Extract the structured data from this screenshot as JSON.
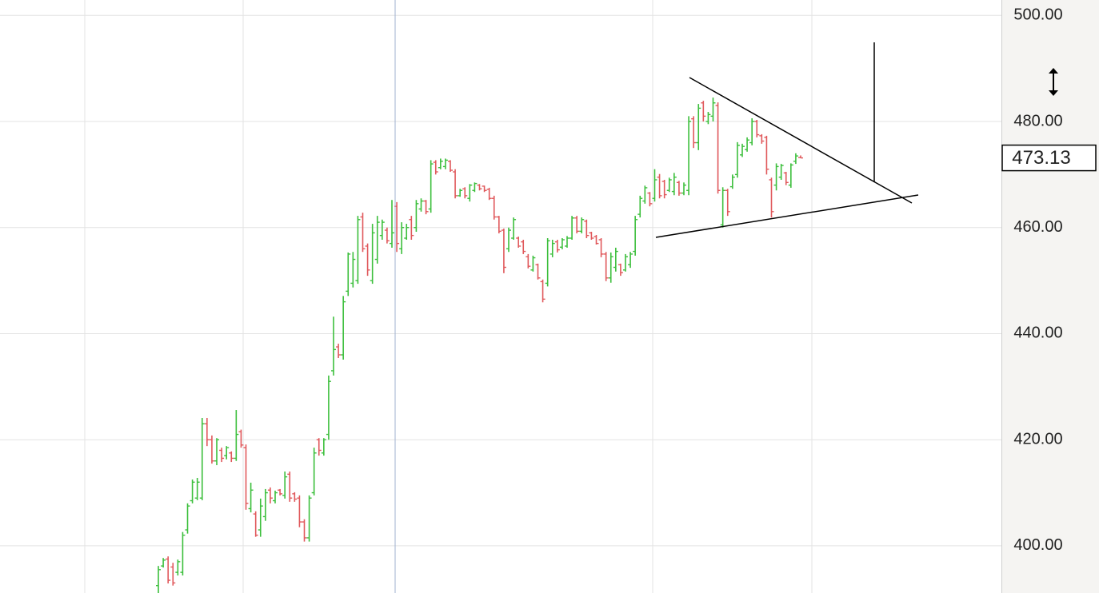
{
  "chart_data": {
    "type": "ohlc",
    "up_color": "#3cbf3c",
    "down_color": "#e0585b",
    "open": [
      392.5,
      396.2,
      397.5,
      396,
      395,
      395,
      403,
      408.5,
      409,
      409,
      423,
      420,
      416,
      418,
      417,
      417.5,
      416.5,
      421.5,
      418.5,
      407,
      406,
      403,
      405.5,
      410.5,
      408.5,
      410.5,
      409.5,
      413.5,
      409.8,
      409,
      404.5,
      401.5,
      410,
      420,
      417.5,
      421,
      433,
      437.5,
      436,
      448,
      449.5,
      450,
      462,
      456.5,
      450,
      454,
      458.5,
      459.5,
      457,
      464,
      456,
      458,
      461.5,
      460,
      463.5,
      465,
      463.5,
      472.3,
      471.3,
      471.5,
      472.5,
      470.5,
      466,
      467.3,
      465.5,
      467,
      468,
      467.8,
      467.2,
      465.5,
      462,
      459.5,
      456,
      458,
      458,
      457.3,
      454.5,
      452,
      453,
      449.8,
      449.5,
      455,
      457.3,
      456.3,
      456.5,
      458,
      461.8,
      459.3,
      461.2,
      459,
      458.3,
      457.7,
      455,
      450.5,
      452.5,
      453,
      452,
      453,
      455.5,
      462.5,
      465,
      466.5,
      465.5,
      469.5,
      468.7,
      467,
      466.8,
      468.5,
      466.5,
      467,
      480.5,
      476,
      483.5,
      480,
      481,
      483,
      460.5,
      467,
      467.7,
      470,
      473.7,
      474.7,
      476,
      480,
      477.3,
      477,
      469,
      468,
      469.5,
      470.3,
      468,
      472.5,
      473.2
    ],
    "high": [
      396.2,
      397.7,
      398,
      396.8,
      397.4,
      402.6,
      408,
      412.5,
      412.8,
      424.1,
      424.1,
      420.8,
      420.3,
      418.5,
      418.8,
      417.8,
      425.6,
      421.9,
      419.1,
      411.9,
      406.5,
      408.9,
      410.7,
      411,
      410.4,
      410.7,
      414,
      414,
      410.1,
      409.5,
      405,
      409.5,
      418.5,
      420.3,
      420.3,
      432.1,
      443.2,
      438.1,
      447.1,
      455.3,
      455.4,
      462.2,
      462.8,
      457,
      460.7,
      462.2,
      461.5,
      460,
      465.2,
      464.8,
      461,
      460.7,
      462.2,
      465.2,
      465.5,
      465.2,
      472.7,
      472.7,
      473,
      473,
      472.7,
      471,
      467.3,
      467.6,
      468.2,
      468.5,
      468.2,
      467.9,
      467.5,
      466,
      462.2,
      459.8,
      460,
      461.9,
      458.3,
      457.7,
      455,
      454.7,
      453.2,
      450.2,
      458,
      457.7,
      457.7,
      458,
      458.4,
      462.2,
      462.2,
      461.9,
      461.5,
      459.2,
      458.6,
      458,
      455.4,
      455.3,
      456.2,
      453.2,
      455,
      455.4,
      462.2,
      466,
      467.9,
      466.7,
      471,
      470.1,
      469,
      469.4,
      470.3,
      468.8,
      468.5,
      481,
      481,
      483.3,
      483.9,
      481.8,
      484.5,
      483.6,
      467.6,
      467.3,
      470,
      476.1,
      475.8,
      477,
      480.6,
      480.3,
      477.6,
      477.3,
      469.4,
      472.1,
      472,
      470.5,
      472.1,
      474,
      473.6
    ],
    "low": [
      391.1,
      395.9,
      392.9,
      392.5,
      394.4,
      394.4,
      402.3,
      408,
      408.6,
      408.6,
      418.8,
      415.5,
      415.2,
      415.8,
      416.3,
      415.8,
      416,
      418.5,
      406.8,
      406.3,
      401.7,
      401.7,
      404.7,
      408,
      408,
      409.5,
      408.9,
      408.3,
      408.3,
      403.5,
      400.8,
      400.8,
      409.5,
      417,
      417,
      420,
      432.1,
      435.4,
      435.1,
      447.1,
      448.7,
      449.4,
      455.4,
      450.9,
      449.4,
      453.2,
      457.7,
      457,
      456.2,
      455.4,
      455,
      457.7,
      457.7,
      459.2,
      463,
      462.5,
      462.8,
      470,
      471,
      471,
      470.5,
      465.5,
      465.8,
      465.5,
      464.9,
      466.7,
      467,
      466.7,
      465.2,
      461.5,
      458.9,
      451.4,
      455.4,
      457.7,
      456.2,
      455,
      452.3,
      451.7,
      450.2,
      445.9,
      448.9,
      454.4,
      455.3,
      455.9,
      456.2,
      457.7,
      458.9,
      458.9,
      458,
      457.7,
      456.8,
      454.4,
      449.9,
      449.6,
      451.7,
      450.9,
      451.7,
      452.4,
      454.7,
      461.9,
      464.5,
      464,
      464.9,
      465.5,
      465.5,
      466.7,
      466.1,
      466,
      466.1,
      466.1,
      475,
      474.6,
      480,
      479.5,
      480,
      466.4,
      460,
      462.2,
      467.3,
      469.4,
      473.3,
      474.3,
      475.5,
      477,
      475.8,
      470,
      461.9,
      467,
      469,
      468,
      467.5,
      472,
      473.1
    ],
    "close": [
      395.5,
      397.3,
      393.5,
      393,
      397,
      402,
      407.5,
      412,
      412,
      423,
      420,
      416,
      420,
      416.5,
      418.5,
      416.5,
      421,
      419,
      408,
      410.5,
      402,
      407.5,
      410,
      409,
      410,
      409.8,
      413,
      409,
      408.8,
      404.5,
      401.5,
      409,
      417.5,
      418,
      420,
      431,
      437,
      436,
      446,
      455,
      454,
      461.5,
      456,
      452,
      459,
      461,
      461,
      457.5,
      459,
      457,
      460,
      460,
      458.5,
      464.5,
      465,
      463,
      472,
      470.5,
      472.5,
      472.7,
      470.8,
      466,
      467,
      466,
      468,
      468.3,
      467.3,
      467,
      465.5,
      462,
      459.3,
      452.5,
      459.5,
      461.5,
      456.5,
      455.5,
      452.7,
      454.3,
      450.5,
      446.5,
      457.5,
      457,
      455.8,
      457.7,
      458,
      461.8,
      459.3,
      461.5,
      458.5,
      458,
      457,
      455,
      450.5,
      454.5,
      455.5,
      451.5,
      454.5,
      455,
      461.5,
      465.5,
      467.5,
      464.5,
      469,
      466,
      466.2,
      469,
      469.5,
      466.5,
      468,
      480,
      476,
      482.5,
      481,
      481.3,
      483.5,
      467,
      467,
      463,
      469.5,
      475.5,
      475.3,
      476.5,
      480,
      477.5,
      476.3,
      471,
      463,
      471.5,
      471.7,
      468.5,
      471.8,
      473.5,
      473.13
    ],
    "last_price": 473.13,
    "ylim": [
      391.1,
      502.9
    ],
    "yticks": [
      {
        "value": 400,
        "label": "400.00"
      },
      {
        "value": 420,
        "label": "420.00"
      },
      {
        "value": 440,
        "label": "440.00"
      },
      {
        "value": 460,
        "label": "460.00"
      },
      {
        "value": 480,
        "label": "480.00"
      },
      {
        "value": 500,
        "label": "500.00"
      }
    ],
    "grid": true
  }
}
